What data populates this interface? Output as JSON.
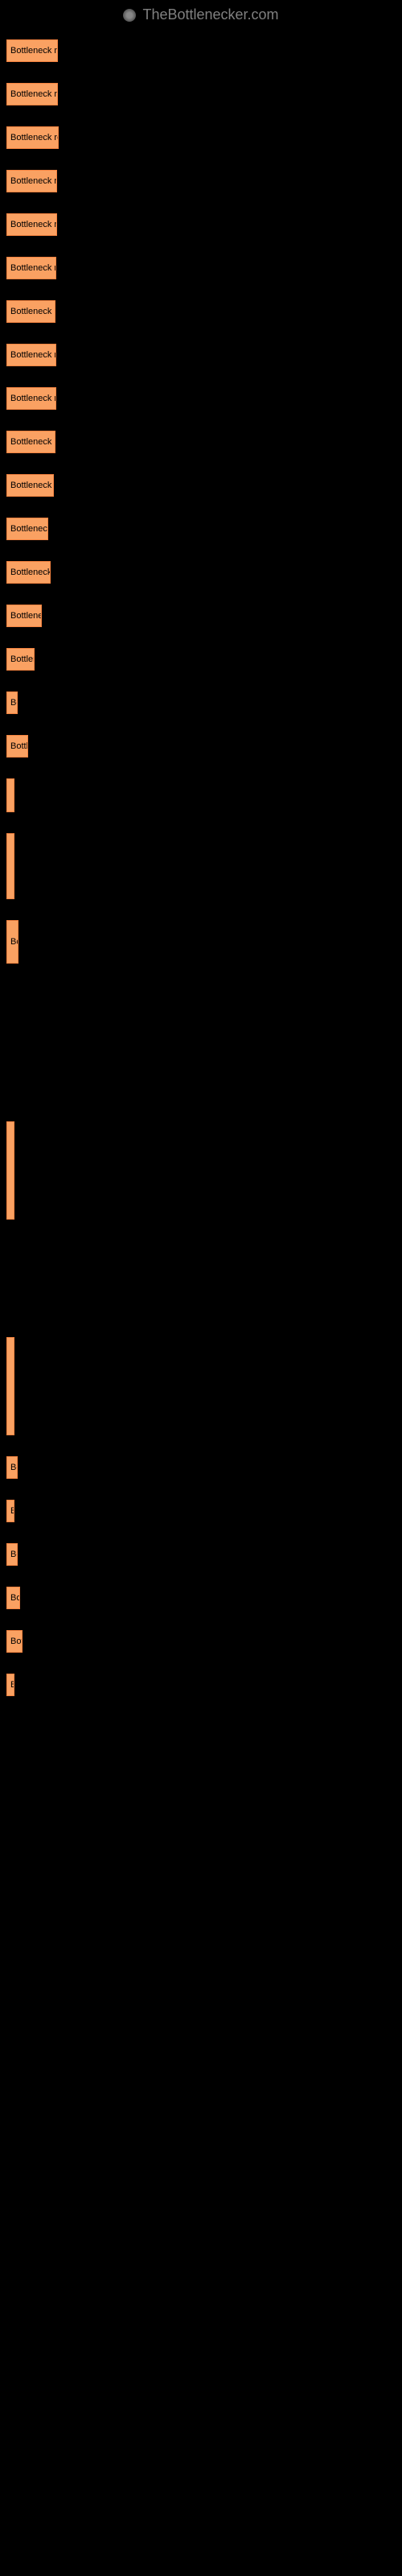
{
  "header": {
    "title": "TheBottlenecker.com"
  },
  "items": [
    {
      "label": "Bottleneck resul",
      "width": 64,
      "tall": false
    },
    {
      "label": "Bottleneck resul",
      "width": 64,
      "tall": false
    },
    {
      "label": "Bottleneck resul",
      "width": 65,
      "tall": false
    },
    {
      "label": "Bottleneck resu",
      "width": 63,
      "tall": false
    },
    {
      "label": "Bottleneck resu",
      "width": 63,
      "tall": false
    },
    {
      "label": "Bottleneck resu",
      "width": 62,
      "tall": false
    },
    {
      "label": "Bottleneck resu",
      "width": 61,
      "tall": false
    },
    {
      "label": "Bottleneck resu",
      "width": 62,
      "tall": false
    },
    {
      "label": "Bottleneck resu",
      "width": 62,
      "tall": false
    },
    {
      "label": "Bottleneck resu",
      "width": 61,
      "tall": false
    },
    {
      "label": "Bottleneck res",
      "width": 59,
      "tall": false
    },
    {
      "label": "Bottleneck r",
      "width": 52,
      "tall": false
    },
    {
      "label": "Bottleneck re",
      "width": 55,
      "tall": false
    },
    {
      "label": "Bottleneck",
      "width": 44,
      "tall": false
    },
    {
      "label": "Bottlene",
      "width": 35,
      "tall": false
    },
    {
      "label": "Bo",
      "width": 14,
      "tall": false
    },
    {
      "label": "Bottle",
      "width": 27,
      "tall": false
    },
    {
      "label": "",
      "width": 6,
      "tall": true,
      "class": "box-tall"
    },
    {
      "label": "",
      "width": 7,
      "tall": true,
      "class": "box-vtall"
    },
    {
      "label": "Bo",
      "width": 15,
      "tall": true,
      "class": "box-tall"
    },
    {
      "label": "",
      "width": 0,
      "spacer": true,
      "height": 170
    },
    {
      "label": "",
      "width": 4,
      "tall": true,
      "class": "box-vvtall"
    },
    {
      "label": "",
      "width": 0,
      "spacer": true,
      "height": 120
    },
    {
      "label": "",
      "width": 2,
      "tall": true,
      "class": "box-vvtall"
    },
    {
      "label": "Bo",
      "width": 14,
      "tall": false
    },
    {
      "label": "B",
      "width": 10,
      "tall": false
    },
    {
      "label": "Bo",
      "width": 14,
      "tall": false
    },
    {
      "label": "Bot",
      "width": 17,
      "tall": false
    },
    {
      "label": "Bott",
      "width": 20,
      "tall": false
    },
    {
      "label": "B",
      "width": 9,
      "tall": false
    }
  ],
  "colors": {
    "box_bg": "#faa162",
    "box_border": "#f58340",
    "page_bg": "#000000",
    "header_text": "#808080"
  }
}
